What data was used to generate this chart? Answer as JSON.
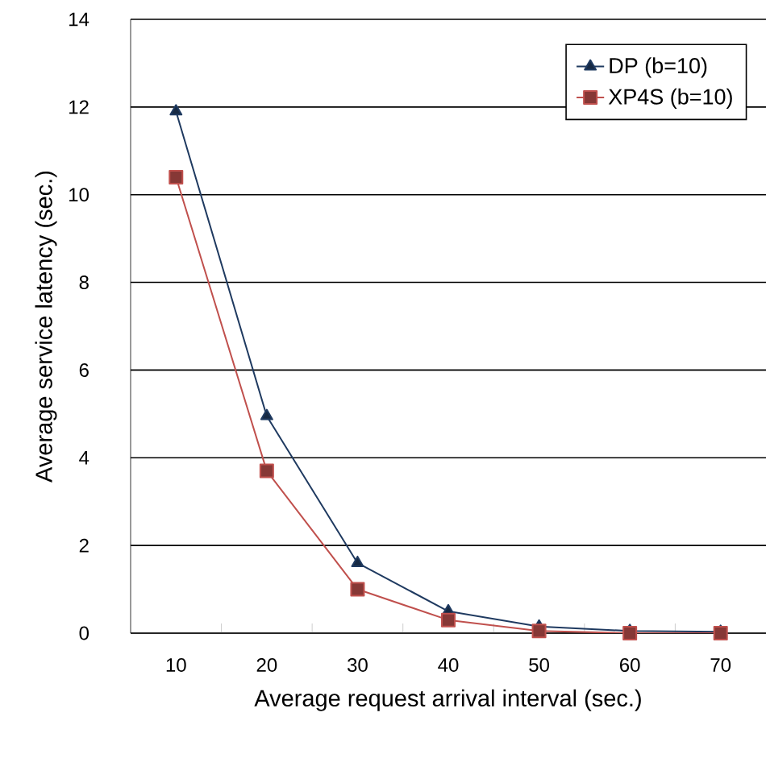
{
  "chart_data": {
    "type": "line",
    "xlabel": "Average request arrival interval (sec.)",
    "ylabel": "Average service latency (sec.)",
    "categories": [
      "10",
      "20",
      "30",
      "40",
      "50",
      "60",
      "70"
    ],
    "series": [
      {
        "name": "DP (b=10)",
        "color": "#1f3a60",
        "marker": "triangle",
        "values": [
          11.9,
          4.95,
          1.6,
          0.5,
          0.15,
          0.05,
          0.03
        ]
      },
      {
        "name": "XP4S (b=10)",
        "color": "#c0504d",
        "marker": "square",
        "values": [
          10.4,
          3.7,
          1.0,
          0.3,
          0.05,
          0,
          0
        ]
      }
    ],
    "ylim": [
      0,
      14
    ],
    "yticks": [
      0,
      2,
      4,
      6,
      8,
      10,
      12,
      14
    ],
    "grid": "y",
    "legend": "top right"
  }
}
